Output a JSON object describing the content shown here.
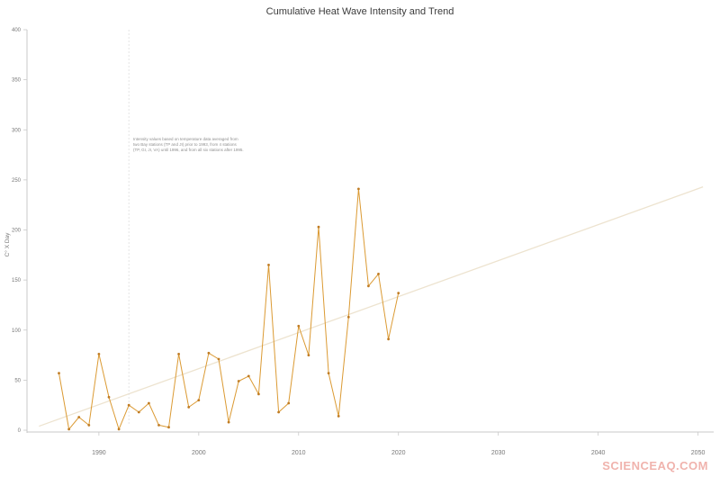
{
  "page": {
    "title": "Cumulative Heat Wave Intensity and Trend",
    "watermark": "SCIENCEAQ.COM"
  },
  "chart_data": {
    "type": "line",
    "title": "Cumulative Heat Wave Intensity and Trend",
    "xlabel": "",
    "ylabel": "C° X Day",
    "xlim": [
      1982.8,
      2051.3
    ],
    "ylim": [
      0,
      400
    ],
    "x_ticks": [
      1990,
      2000,
      2010,
      2020,
      2030,
      2040,
      2050
    ],
    "y_ticks": [
      0,
      50,
      100,
      150,
      200,
      250,
      300,
      350,
      400
    ],
    "grid": false,
    "legend": "none",
    "series": [
      {
        "name": "Cumulative heat wave intensity",
        "color": "#db9a33",
        "marker_color": "#c07c24",
        "x": [
          1986,
          1987,
          1988,
          1989,
          1990,
          1991,
          1992,
          1993,
          1994,
          1995,
          1996,
          1997,
          1998,
          1999,
          2000,
          2001,
          2002,
          2003,
          2004,
          2005,
          2006,
          2007,
          2008,
          2009,
          2010,
          2011,
          2012,
          2013,
          2014,
          2015,
          2016,
          2017,
          2018,
          2019,
          2020
        ],
        "y": [
          57,
          1,
          13,
          5,
          76,
          33,
          1,
          25,
          18,
          27,
          5,
          3,
          76,
          23,
          30,
          77,
          71,
          8,
          49,
          54,
          36,
          165,
          18,
          27,
          104,
          75,
          203,
          57,
          14,
          113,
          241,
          144,
          156,
          91,
          137
        ]
      }
    ],
    "trend": {
      "name": "Trend line",
      "color": "#ede3cf",
      "x": [
        1984,
        2050.5
      ],
      "y": [
        4,
        243
      ]
    },
    "reference_line": {
      "x": 1993,
      "style": "dashed",
      "color": "#dcdcdc"
    },
    "annotation": {
      "lines": [
        "Intensity values based on temperature data averaged from",
        "two Bay stations (TP and JI) prior to 1993, from 4 stations",
        "(TP, GI, JI, VA) until 1996, and from all six stations after 1995."
      ]
    },
    "colors": {
      "spine": "#c9c9c9",
      "tick_label": "#777777",
      "title": "#3b3b3b",
      "annotation": "#8f8f8f",
      "watermark": "#f0b3ad"
    }
  }
}
